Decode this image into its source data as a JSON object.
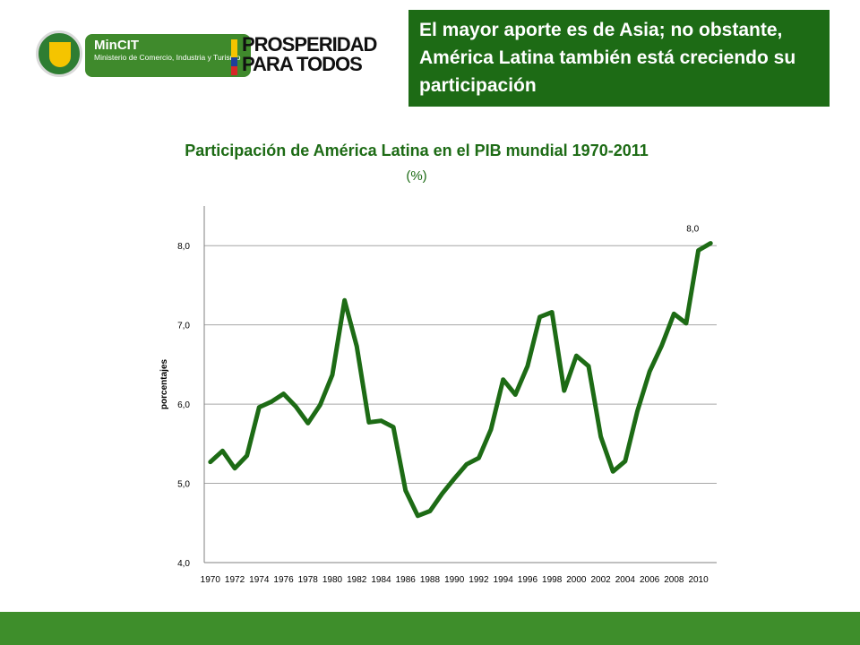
{
  "header": {
    "mincit_name": "MinCIT",
    "mincit_sub": "Ministerio de Comercio, Industria y Turismo",
    "prosperidad": "PROSPERIDAD PARA TODOS",
    "banner": "El mayor aporte es de Asia; no obstante, América Latina también está creciendo su participación"
  },
  "colors": {
    "line": "#1d6b15",
    "banner": "#1d6b15",
    "footer": "#3e8e2b"
  },
  "chart_data": {
    "type": "line",
    "title": "Participación de América Latina en el PIB mundial 1970-2011",
    "subtitle": "(%)",
    "ylabel": "porcentajes",
    "xlabel": "",
    "ylim": [
      4.0,
      8.5
    ],
    "yticks": [
      "4,0",
      "5,0",
      "6,0",
      "7,0",
      "8,0"
    ],
    "xtick_labels": [
      "1970",
      "1972",
      "1974",
      "1976",
      "1978",
      "1980",
      "1982",
      "1984",
      "1986",
      "1988",
      "1990",
      "1992",
      "1994",
      "1996",
      "1998",
      "2000",
      "2002",
      "2004",
      "2006",
      "2008",
      "2010"
    ],
    "grid": true,
    "legend": "none",
    "x": [
      1970,
      1971,
      1972,
      1973,
      1974,
      1975,
      1976,
      1977,
      1978,
      1979,
      1980,
      1981,
      1982,
      1983,
      1984,
      1985,
      1986,
      1987,
      1988,
      1989,
      1990,
      1991,
      1992,
      1993,
      1994,
      1995,
      1996,
      1997,
      1998,
      1999,
      2000,
      2001,
      2002,
      2003,
      2004,
      2005,
      2006,
      2007,
      2008,
      2009,
      2010,
      2011
    ],
    "series": [
      {
        "values": [
          5.27,
          5.41,
          5.19,
          5.35,
          5.96,
          6.03,
          6.13,
          5.97,
          5.76,
          5.99,
          6.37,
          7.31,
          6.73,
          5.77,
          5.79,
          5.71,
          4.91,
          4.59,
          4.65,
          4.87,
          5.06,
          5.24,
          5.32,
          5.68,
          6.31,
          6.12,
          6.48,
          7.1,
          7.16,
          6.17,
          6.61,
          6.48,
          5.59,
          5.15,
          5.28,
          5.91,
          6.41,
          6.74,
          7.14,
          7.02,
          7.94,
          8.03
        ]
      }
    ],
    "annotations": [
      {
        "x": 2011,
        "text": "8,0"
      }
    ]
  }
}
